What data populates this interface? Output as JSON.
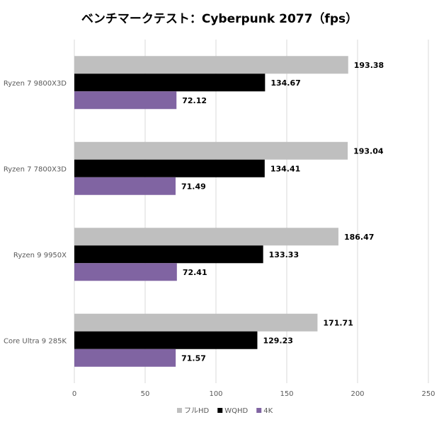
{
  "chart_data": {
    "type": "bar",
    "orientation": "horizontal",
    "title": "ベンチマークテスト：Cyberpunk 2077（fps）",
    "xlabel": "",
    "ylabel": "",
    "xlim": [
      0,
      250
    ],
    "xticks": [
      0,
      50,
      100,
      150,
      200,
      250
    ],
    "grid": true,
    "legend_position": "bottom",
    "categories": [
      "Ryzen 7 9800X3D",
      "Ryzen 7 7800X3D",
      "Ryzen 9 9950X",
      "Core Ultra 9 285K"
    ],
    "series": [
      {
        "name": "フルHD",
        "color": "#bfbfbf",
        "values": [
          193.38,
          193.04,
          186.47,
          171.71
        ]
      },
      {
        "name": "WQHD",
        "color": "#000000",
        "values": [
          134.67,
          134.41,
          133.33,
          129.23
        ]
      },
      {
        "name": "4K",
        "color": "#8064a2",
        "values": [
          72.12,
          71.49,
          72.41,
          71.57
        ]
      }
    ]
  }
}
